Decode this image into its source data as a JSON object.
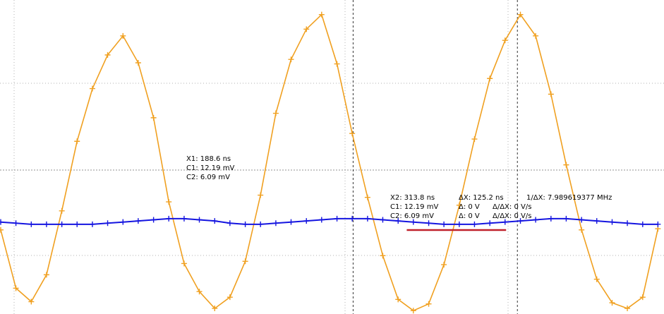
{
  "chart_data": {
    "type": "line",
    "x_unit": "ns",
    "y_unit": "mV",
    "xlim": [
      -80,
      425
    ],
    "ylim": [
      -80,
      200
    ],
    "grid": true,
    "series": [
      {
        "color": "#f0a020",
        "x": [
          -80,
          -68.4,
          -56.7,
          -45.1,
          -33.4,
          -21.8,
          -10.1,
          1.5,
          13.2,
          24.8,
          36.5,
          48.1,
          59.8,
          71.4,
          83.1,
          94.7,
          106.4,
          118,
          129.7,
          141.3,
          153,
          164.6,
          176.3,
          187.9,
          199.6,
          211.2,
          222.9,
          234.5,
          246.2,
          257.8,
          269.5,
          281.1,
          292.8,
          304.4,
          316.1,
          327.7,
          339.4,
          351,
          362.7,
          374.3,
          386,
          397.6,
          409.3,
          420.9
        ],
        "y": [
          -5,
          -57,
          -69,
          -45,
          12,
          74,
          121,
          151,
          168,
          144,
          95,
          20,
          -35,
          -60,
          -75,
          -65,
          -33,
          26,
          99,
          147,
          174,
          187,
          143,
          81,
          24,
          -28,
          -67,
          -77,
          -71,
          -36,
          17,
          76,
          130,
          164,
          187,
          168,
          116,
          53,
          -5,
          -49,
          -70,
          -75,
          -65,
          -4
        ]
      },
      {
        "color": "#1515e0",
        "x": [
          -80,
          -68.4,
          -56.7,
          -45.1,
          -33.4,
          -21.8,
          -10.1,
          1.5,
          13.2,
          24.8,
          36.5,
          48.1,
          59.8,
          71.4,
          83.1,
          94.7,
          106.4,
          118,
          129.7,
          141.3,
          153,
          164.6,
          176.3,
          187.9,
          199.6,
          211.2,
          222.9,
          234.5,
          246.2,
          257.8,
          269.5,
          281.1,
          292.8,
          304.4,
          316.1,
          327.7,
          339.4,
          351,
          362.7,
          374.3,
          386,
          397.6,
          409.3,
          420.9
        ],
        "y": [
          2,
          1,
          0,
          0,
          0,
          0,
          0,
          1,
          2,
          3,
          4,
          5,
          5,
          4,
          3,
          1,
          0,
          0,
          1,
          2,
          3,
          4,
          5,
          5,
          5,
          4,
          3,
          2,
          1,
          0,
          0,
          0,
          1,
          2,
          3,
          4,
          5,
          5,
          4,
          3,
          2,
          1,
          0,
          0
        ]
      }
    ],
    "cursors": [
      {
        "label": "X1",
        "x": 188.6,
        "color": "#333333"
      },
      {
        "label": "X2",
        "x": 313.8,
        "color": "#333333"
      }
    ],
    "highlight": {
      "x1": 188.6,
      "x2": 313.8,
      "y": 12.19,
      "color": "#c0202a"
    }
  },
  "readout1": {
    "x": "X1: 188.6 ns",
    "c1": "C1: 12.19 mV",
    "c2": "C2: 6.09 mV"
  },
  "readout2": {
    "x": "X2: 313.8 ns",
    "c1": "C1: 12.19 mV",
    "c2": "C2: 6.09 mV",
    "dx": "ΔX: 125.2 ns",
    "d1": "Δ: 0 V",
    "d2": "Δ: 0 V",
    "inv_dx": "1/ΔX: 7.989619377 MHz",
    "rate1": "Δ/ΔX: 0 V/s",
    "rate2": "Δ/ΔX: 0 V/s"
  }
}
